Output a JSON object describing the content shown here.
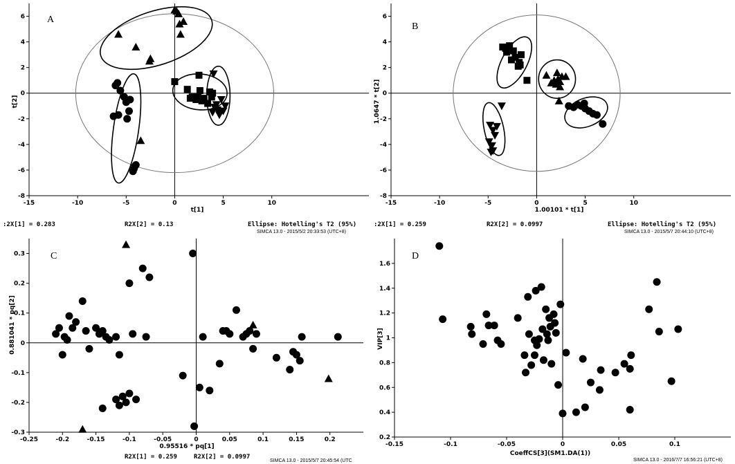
{
  "chart_data": [
    {
      "type": "scatter",
      "panel": "A",
      "xlabel": "t[1]",
      "ylabel": "t[2]",
      "xlim": [
        -15,
        20
      ],
      "ylim": [
        -8,
        7
      ],
      "xticks": [
        -15,
        -10,
        -5,
        0,
        5,
        10
      ],
      "yticks": [
        -8,
        -6,
        -4,
        -2,
        0,
        2,
        4,
        6
      ],
      "footer": [
        ":2X[1] = 0.283",
        "R2X[2] = 0.13",
        "Ellipse: Hotelling's T2 (95%)"
      ],
      "stamp": "SIMCA 13.0 - 2015/5/2 20:33:53 (UTC+8)",
      "hotelling_ellipse": {
        "cx": 0,
        "cy": 0,
        "rx": 10.2,
        "ry": 6.2
      },
      "groups": [
        {
          "marker": "triangle",
          "points": [
            [
              -5.8,
              4.6
            ],
            [
              -4,
              3.6
            ],
            [
              -2.6,
              2.5
            ],
            [
              -2.5,
              2.7
            ],
            [
              0,
              6.5
            ],
            [
              0.2,
              6.4
            ],
            [
              0.5,
              5.4
            ],
            [
              0.9,
              5.6
            ],
            [
              0.6,
              4.6
            ],
            [
              0.4,
              6.2
            ]
          ],
          "ellipse": {
            "cx": -1.9,
            "cy": 4.3,
            "rx": 6.0,
            "ry": 2.1,
            "angle": 18
          }
        },
        {
          "marker": "circle",
          "points": [
            [
              -6.1,
              0.6
            ],
            [
              -5.9,
              0.8
            ],
            [
              -5.6,
              0.2
            ],
            [
              -5.2,
              -0.3
            ],
            [
              -5,
              -0.7
            ],
            [
              -6.3,
              -1.8
            ],
            [
              -5.8,
              -1.7
            ],
            [
              -4.9,
              -2
            ],
            [
              -4.7,
              -1.4
            ],
            [
              -4.6,
              -0.5
            ],
            [
              -4,
              -5.6
            ],
            [
              -4.2,
              -5.9
            ],
            [
              -4.3,
              -6.1
            ],
            [
              -4.1,
              -5.7
            ]
          ],
          "ellipse": {
            "cx": -5.0,
            "cy": -2.75,
            "rx": 1.3,
            "ry": 4.3,
            "angle": -8
          }
        },
        {
          "marker": "triangle",
          "points": [
            [
              -3.5,
              -3.7
            ]
          ]
        },
        {
          "marker": "square",
          "points": [
            [
              0,
              0.9
            ],
            [
              1.3,
              0.3
            ],
            [
              1.8,
              -0.3
            ],
            [
              2.2,
              -0.5
            ],
            [
              2.4,
              -0.3
            ],
            [
              2.6,
              0.2
            ],
            [
              2.8,
              -0.6
            ],
            [
              3,
              -0.4
            ],
            [
              3.4,
              -0.8
            ],
            [
              3.6,
              0.1
            ],
            [
              3.9,
              0
            ],
            [
              2.5,
              1.4
            ],
            [
              1.6,
              -0.4
            ],
            [
              3.8,
              -0.3
            ]
          ],
          "ellipse": {
            "cx": 2.6,
            "cy": 0.1,
            "rx": 2.8,
            "ry": 1.4,
            "angle": -5
          }
        },
        {
          "marker": "triangle-down",
          "points": [
            [
              3.9,
              -1.5
            ],
            [
              4.1,
              -1.1
            ],
            [
              4.4,
              -1.3
            ],
            [
              4.7,
              -1.5
            ],
            [
              5,
              -1.4
            ],
            [
              4.6,
              -1.7
            ],
            [
              5.2,
              -1.0
            ],
            [
              4.3,
              -0.9
            ],
            [
              4.0,
              1.5
            ],
            [
              4.8,
              -0.5
            ]
          ],
          "ellipse": {
            "cx": 4.5,
            "cy": -0.2,
            "rx": 1.2,
            "ry": 2.3,
            "angle": 0
          }
        }
      ]
    },
    {
      "type": "scatter",
      "panel": "B",
      "xlabel": "1.00101 * t[1]",
      "ylabel": "1.0647 * t[2]",
      "xlim": [
        -15,
        20
      ],
      "ylim": [
        -8,
        7
      ],
      "xticks": [
        -15,
        -10,
        -5,
        0,
        5,
        10
      ],
      "yticks": [
        -8,
        -6,
        -4,
        -2,
        0,
        2,
        4,
        6
      ],
      "footer": [
        ":2X[1] = 0.259",
        "R2X[2] = 0.0997",
        "Ellipse: Hotelling's T2 (95%)"
      ],
      "stamp": "SIMCA 13.0 - 2015/5/7 20:44:10 (UTC+8)",
      "hotelling_ellipse": {
        "cx": 0,
        "cy": 0,
        "rx": 8.6,
        "ry": 6.1
      },
      "groups": [
        {
          "marker": "square",
          "points": [
            [
              -3.5,
              3.6
            ],
            [
              -3.1,
              3.2
            ],
            [
              -2.8,
              3.7
            ],
            [
              -2.4,
              3.3
            ],
            [
              -2.2,
              2.8
            ],
            [
              -1.8,
              2.4
            ],
            [
              -1.6,
              3.0
            ],
            [
              -2.6,
              2.6
            ],
            [
              -1.9,
              2.1
            ],
            [
              -1,
              1
            ],
            [
              -3.2,
              3.5
            ],
            [
              -1.7,
              2.2
            ]
          ],
          "ellipse": {
            "cx": -2.3,
            "cy": 2.4,
            "rx": 1.3,
            "ry": 2.2,
            "angle": -28
          }
        },
        {
          "marker": "triangle",
          "points": [
            [
              1,
              1.4
            ],
            [
              1.5,
              0.8
            ],
            [
              1.8,
              1.0
            ],
            [
              2,
              0.7
            ],
            [
              2.2,
              1.1
            ],
            [
              2.4,
              0.9
            ],
            [
              2.6,
              1.3
            ],
            [
              2.1,
              1.6
            ],
            [
              3,
              1.3
            ],
            [
              2.4,
              0.5
            ],
            [
              2.3,
              -0.6
            ]
          ],
          "ellipse": {
            "cx": 2.1,
            "cy": 1.1,
            "rx": 1.9,
            "ry": 1.5,
            "angle": 0
          }
        },
        {
          "marker": "circle",
          "points": [
            [
              3.3,
              -1
            ],
            [
              3.8,
              -1.1
            ],
            [
              4.2,
              -0.9
            ],
            [
              4.6,
              -1.0
            ],
            [
              5,
              -1.2
            ],
            [
              5.4,
              -1.4
            ],
            [
              5.8,
              -1.6
            ],
            [
              6.2,
              -1.7
            ],
            [
              6.8,
              -2.4
            ],
            [
              4.9,
              -0.8
            ]
          ],
          "ellipse": {
            "cx": 5.1,
            "cy": -1.5,
            "rx": 2.3,
            "ry": 1.1,
            "angle": 22
          }
        },
        {
          "marker": "triangle-down",
          "points": [
            [
              -4.8,
              -2.5
            ],
            [
              -4.5,
              -2.9
            ],
            [
              -4.3,
              -3.3
            ],
            [
              -4.9,
              -3.8
            ],
            [
              -4.6,
              -4.1
            ],
            [
              -4.7,
              -4.6
            ],
            [
              -4.1,
              -2.6
            ],
            [
              -3.6,
              -1.0
            ],
            [
              -4.5,
              -4.5
            ]
          ],
          "ellipse": {
            "cx": -4.4,
            "cy": -2.8,
            "rx": 1.0,
            "ry": 2.1,
            "angle": 12
          }
        }
      ]
    },
    {
      "type": "scatter",
      "panel": "C",
      "xlabel": "0.95516 * pq[1]",
      "ylabel": "0.881041 * pq[2]",
      "xlim": [
        -0.25,
        0.25
      ],
      "ylim": [
        -0.3,
        0.35
      ],
      "xticks": [
        -0.25,
        -0.2,
        -0.15,
        -0.1,
        -0.05,
        0,
        0.05,
        0.1,
        0.15,
        0.2
      ],
      "yticks": [
        -0.3,
        -0.2,
        -0.1,
        0,
        0.1,
        0.2,
        0.3
      ],
      "footer": [
        "R2X[1] = 0.259",
        "R2X[2] = 0.0997"
      ],
      "stamp": "SIMCA 13.0 - 2015/5/7 20:45:54 (UTC",
      "groups": [
        {
          "marker": "circle",
          "points": [
            [
              -0.21,
              0.03
            ],
            [
              -0.205,
              0.05
            ],
            [
              -0.2,
              -0.04
            ],
            [
              -0.197,
              0.02
            ],
            [
              -0.193,
              0.01
            ],
            [
              -0.19,
              0.09
            ],
            [
              -0.185,
              0.05
            ],
            [
              -0.18,
              0.07
            ],
            [
              -0.17,
              0.14
            ],
            [
              -0.165,
              0.04
            ],
            [
              -0.16,
              -0.02
            ],
            [
              -0.15,
              0.05
            ],
            [
              -0.145,
              0.03
            ],
            [
              -0.14,
              0.04
            ],
            [
              -0.135,
              0.02
            ],
            [
              -0.13,
              0.01
            ],
            [
              -0.12,
              0.02
            ],
            [
              -0.115,
              -0.04
            ],
            [
              -0.1,
              0.2
            ],
            [
              -0.095,
              0.03
            ],
            [
              -0.08,
              0.25
            ],
            [
              -0.075,
              0.02
            ],
            [
              -0.07,
              0.22
            ],
            [
              -0.14,
              -0.22
            ],
            [
              -0.12,
              -0.19
            ],
            [
              -0.115,
              -0.21
            ],
            [
              -0.11,
              -0.18
            ],
            [
              -0.105,
              -0.2
            ],
            [
              -0.1,
              -0.17
            ],
            [
              -0.09,
              -0.19
            ],
            [
              -0.02,
              -0.11
            ],
            [
              -0.005,
              0.3
            ],
            [
              -0.003,
              -0.28
            ],
            [
              0.005,
              -0.15
            ],
            [
              0.01,
              0.02
            ],
            [
              0.02,
              -0.16
            ],
            [
              0.035,
              -0.07
            ],
            [
              0.04,
              0.04
            ],
            [
              0.045,
              0.04
            ],
            [
              0.05,
              0.03
            ],
            [
              0.06,
              0.11
            ],
            [
              0.07,
              0.02
            ],
            [
              0.075,
              0.03
            ],
            [
              0.08,
              0.04
            ],
            [
              0.085,
              -0.02
            ],
            [
              0.09,
              0.03
            ],
            [
              0.12,
              -0.05
            ],
            [
              0.14,
              -0.09
            ],
            [
              0.145,
              -0.03
            ],
            [
              0.15,
              -0.04
            ],
            [
              0.155,
              -0.06
            ],
            [
              0.158,
              0.02
            ],
            [
              0.212,
              0.02
            ]
          ]
        },
        {
          "marker": "triangle",
          "points": [
            [
              -0.105,
              0.33
            ],
            [
              -0.17,
              -0.29
            ],
            [
              0.085,
              0.06
            ],
            [
              0.198,
              -0.12
            ]
          ]
        }
      ]
    },
    {
      "type": "scatter",
      "panel": "D",
      "xlabel": "CoeffCS[3](SM1.DA(1))",
      "ylabel": "VIP[3]",
      "xlim": [
        -0.15,
        0.15
      ],
      "ylim": [
        0.2,
        1.8
      ],
      "xticks": [
        -0.15,
        -0.1,
        -0.05,
        0,
        0.05,
        0.1
      ],
      "yticks": [
        0.2,
        0.4,
        0.6,
        0.8,
        1.0,
        1.2,
        1.4,
        1.6
      ],
      "ytick_labels": [
        "0.2",
        "0.4",
        "0.6",
        "0.8",
        "1",
        "1.2",
        "1.4",
        "1.6"
      ],
      "stamp": "SIMCA 13.0 - 2016/7/7 16:56:21 (UTC+8)",
      "groups": [
        {
          "marker": "circle",
          "points": [
            [
              -0.11,
              1.74
            ],
            [
              -0.107,
              1.15
            ],
            [
              -0.082,
              1.09
            ],
            [
              -0.081,
              1.03
            ],
            [
              -0.071,
              0.95
            ],
            [
              -0.068,
              1.19
            ],
            [
              -0.066,
              1.1
            ],
            [
              -0.061,
              1.1
            ],
            [
              -0.058,
              0.98
            ],
            [
              -0.055,
              0.95
            ],
            [
              -0.04,
              1.16
            ],
            [
              -0.034,
              0.86
            ],
            [
              -0.033,
              0.72
            ],
            [
              -0.031,
              1.33
            ],
            [
              -0.03,
              1.03
            ],
            [
              -0.028,
              0.78
            ],
            [
              -0.025,
              0.98
            ],
            [
              -0.025,
              0.86
            ],
            [
              -0.024,
              1.38
            ],
            [
              -0.023,
              0.94
            ],
            [
              -0.021,
              0.99
            ],
            [
              -0.019,
              1.41
            ],
            [
              -0.018,
              1.07
            ],
            [
              -0.017,
              0.82
            ],
            [
              -0.015,
              1.23
            ],
            [
              -0.014,
              1.03
            ],
            [
              -0.013,
              0.98
            ],
            [
              -0.012,
              1.16
            ],
            [
              -0.011,
              1.09
            ],
            [
              -0.01,
              0.79
            ],
            [
              -0.008,
              1.19
            ],
            [
              -0.007,
              1.12
            ],
            [
              -0.006,
              1.04
            ],
            [
              -0.004,
              0.62
            ],
            [
              -0.002,
              1.27
            ],
            [
              0,
              0.39
            ],
            [
              0.003,
              0.88
            ],
            [
              0.012,
              0.4
            ],
            [
              0.018,
              0.83
            ],
            [
              0.02,
              0.44
            ],
            [
              0.025,
              0.64
            ],
            [
              0.033,
              0.58
            ],
            [
              0.034,
              0.74
            ],
            [
              0.047,
              0.72
            ],
            [
              0.055,
              0.79
            ],
            [
              0.06,
              0.75
            ],
            [
              0.061,
              0.86
            ],
            [
              0.06,
              0.42
            ],
            [
              0.077,
              1.23
            ],
            [
              0.084,
              1.45
            ],
            [
              0.086,
              1.05
            ],
            [
              0.097,
              0.65
            ],
            [
              0.103,
              1.07
            ]
          ]
        }
      ]
    }
  ]
}
